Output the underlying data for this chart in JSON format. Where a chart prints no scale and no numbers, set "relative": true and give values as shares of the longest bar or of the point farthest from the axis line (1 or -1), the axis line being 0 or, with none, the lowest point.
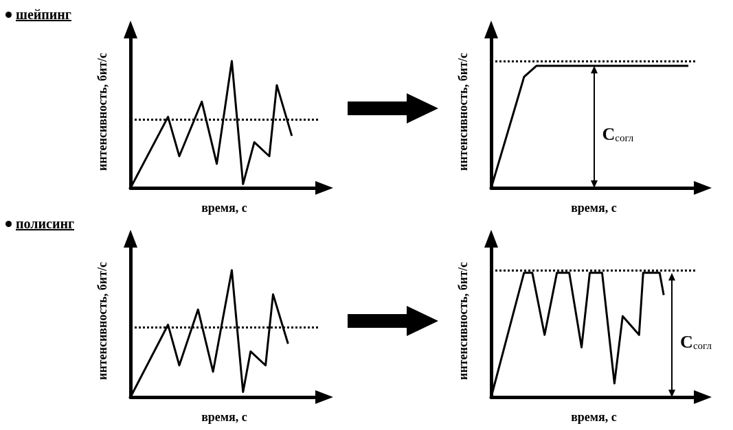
{
  "chart_data": [
    {
      "type": "line",
      "title": "шейпинг",
      "xlabel": "время, с",
      "ylabel": "интенсивность, бит/с",
      "relative": true,
      "marker": "none",
      "line_style": "solid",
      "color": "#000000",
      "categories": [
        null,
        null,
        null,
        null,
        null,
        null,
        null,
        null,
        null,
        null,
        null,
        null,
        null,
        null,
        null,
        null,
        null,
        null,
        null,
        null,
        null,
        null,
        null,
        null,
        null,
        null,
        null,
        null,
        null,
        null,
        null,
        null,
        null,
        null,
        null,
        null,
        null,
        null,
        null,
        null,
        null,
        null,
        null,
        null,
        null,
        null,
        null,
        null,
        null,
        null,
        null
      ],
      "values": [
        0,
        null,
        null,
        null,
        null,
        null,
        null,
        null,
        null,
        null,
        0.56,
        null,
        null,
        0.25,
        null,
        null,
        null,
        null,
        null,
        0.68,
        null,
        null,
        null,
        0.19,
        null,
        null,
        null,
        1,
        null,
        null,
        0.03,
        null,
        null,
        0.36,
        null,
        null,
        null,
        0.25,
        null,
        0.81,
        null,
        null,
        null,
        0.41,
        null,
        null,
        null,
        null,
        null,
        null,
        null
      ],
      "ref_lines": [
        {
          "axis": "y",
          "value": 0.54,
          "line_style": "dotted"
        }
      ]
    },
    {
      "type": "line",
      "xlabel": "время, с",
      "ylabel": "интенсивность, бит/с",
      "relative": true,
      "marker": "none",
      "line_style": "solid",
      "color": "#000000",
      "categories": [
        null,
        null,
        null,
        null,
        null,
        null,
        null,
        null,
        null,
        null,
        null,
        null,
        null,
        null,
        null,
        null,
        null,
        null,
        null,
        null,
        null,
        null,
        null,
        null,
        null,
        null,
        null,
        null,
        null,
        null,
        null,
        null,
        null,
        null,
        null,
        null,
        null,
        null,
        null,
        null,
        null,
        null,
        null,
        null,
        null,
        null,
        null,
        null,
        null,
        null,
        null
      ],
      "values": [
        0,
        null,
        null,
        null,
        null,
        null,
        0.68,
        null,
        0.91,
        null,
        null,
        1,
        null,
        null,
        null,
        null,
        null,
        null,
        null,
        null,
        null,
        null,
        null,
        null,
        null,
        null,
        null,
        null,
        null,
        null,
        null,
        null,
        null,
        null,
        null,
        null,
        null,
        null,
        null,
        null,
        null,
        null,
        null,
        null,
        null,
        null,
        null,
        null,
        1,
        null,
        null
      ],
      "ref_lines": [
        {
          "axis": "y",
          "value": 1.04,
          "line_style": "dotted"
        }
      ],
      "annotations": [
        "C$_{согл}$"
      ]
    },
    {
      "type": "line",
      "title": "полисинг",
      "xlabel": "время, с",
      "ylabel": "интенсивность, бит/с",
      "relative": true,
      "marker": "none",
      "line_style": "solid",
      "color": "#000000",
      "categories": [
        null,
        null,
        null,
        null,
        null,
        null,
        null,
        null,
        null,
        null,
        null,
        null,
        null,
        null,
        null,
        null,
        null,
        null,
        null,
        null,
        null,
        null,
        null,
        null,
        null,
        null,
        null,
        null,
        null,
        null,
        null,
        null,
        null,
        null,
        null,
        null,
        null,
        null,
        null,
        null,
        null,
        null,
        null,
        null,
        null,
        null,
        null,
        null,
        null,
        null,
        null
      ],
      "values": [
        0,
        null,
        null,
        null,
        null,
        null,
        null,
        null,
        null,
        null,
        0.57,
        null,
        null,
        0.25,
        null,
        null,
        null,
        null,
        0.69,
        null,
        null,
        null,
        0.2,
        null,
        null,
        null,
        null,
        1,
        null,
        null,
        0.04,
        null,
        0.36,
        null,
        null,
        null,
        0.25,
        null,
        0.81,
        null,
        null,
        null,
        0.42,
        null,
        null,
        null,
        null,
        null,
        null,
        null,
        null
      ],
      "ref_lines": [
        {
          "axis": "y",
          "value": 0.55,
          "line_style": "dotted"
        }
      ]
    },
    {
      "type": "line",
      "xlabel": "время, с",
      "ylabel": "интенсивность, бит/с",
      "relative": true,
      "marker": "none",
      "line_style": "solid",
      "color": "#000000",
      "categories": [
        null,
        null,
        null,
        null,
        null,
        null,
        null,
        null,
        null,
        null,
        null,
        null,
        null,
        null,
        null,
        null,
        null,
        null,
        null,
        null,
        null,
        null,
        null,
        null,
        null,
        null,
        null,
        null,
        null,
        null,
        null,
        null,
        null,
        null,
        null,
        null,
        null,
        null,
        null,
        null,
        null,
        null,
        null,
        null,
        null,
        null,
        null,
        null,
        null,
        null,
        null
      ],
      "values": [
        0,
        null,
        null,
        null,
        null,
        null,
        null,
        null,
        1,
        null,
        1,
        null,
        null,
        0.5,
        null,
        null,
        1,
        null,
        null,
        1,
        null,
        null,
        0.4,
        null,
        1,
        null,
        null,
        1,
        null,
        null,
        0.11,
        null,
        0.65,
        null,
        null,
        null,
        0.5,
        1,
        null,
        null,
        null,
        1,
        0.82,
        null,
        null,
        null,
        null,
        null,
        null,
        null,
        null
      ],
      "ref_lines": [
        {
          "axis": "y",
          "value": 1.02,
          "line_style": "dotted"
        }
      ],
      "annotations": [
        "C$_{согл}$"
      ]
    }
  ]
}
